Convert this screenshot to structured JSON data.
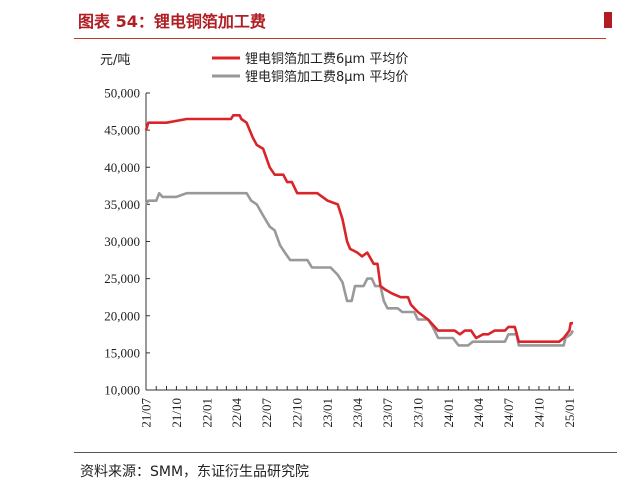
{
  "figure": {
    "title": "图表 54：锂电铜箔加工费",
    "source": "资料来源：SMM，东证衍生品研究院"
  },
  "chart_data": {
    "type": "line",
    "ylabel": "元/吨",
    "ylim": [
      10000,
      50000
    ],
    "yticks": [
      "10,000",
      "15,000",
      "20,000",
      "25,000",
      "30,000",
      "35,000",
      "40,000",
      "45,000",
      "50,000"
    ],
    "ytick_values": [
      10000,
      15000,
      20000,
      25000,
      30000,
      35000,
      40000,
      45000,
      50000
    ],
    "xlim": [
      "2021-07-01",
      "2025-01-15"
    ],
    "xticks": [
      "21/07",
      "21/10",
      "22/01",
      "22/04",
      "22/07",
      "22/10",
      "23/01",
      "23/04",
      "23/07",
      "23/10",
      "24/01",
      "24/04",
      "24/07",
      "24/10",
      "25/01"
    ],
    "xtick_dates": [
      "2021-07-01",
      "2021-10-01",
      "2022-01-01",
      "2022-04-01",
      "2022-07-01",
      "2022-10-01",
      "2023-01-01",
      "2023-04-01",
      "2023-07-01",
      "2023-10-01",
      "2024-01-01",
      "2024-04-01",
      "2024-07-01",
      "2024-10-01",
      "2025-01-01"
    ],
    "legend_position": "top",
    "series": [
      {
        "name": "锂电铜箔加工费6μm 平均价",
        "color": "#d9252a",
        "points": [
          [
            "2021-07-01",
            45000
          ],
          [
            "2021-07-08",
            46000
          ],
          [
            "2021-09-01",
            46000
          ],
          [
            "2021-11-01",
            46500
          ],
          [
            "2022-03-15",
            46500
          ],
          [
            "2022-03-22",
            47000
          ],
          [
            "2022-04-10",
            47000
          ],
          [
            "2022-04-15",
            46500
          ],
          [
            "2022-05-01",
            46000
          ],
          [
            "2022-05-20",
            44000
          ],
          [
            "2022-06-01",
            43000
          ],
          [
            "2022-06-20",
            42500
          ],
          [
            "2022-07-10",
            40000
          ],
          [
            "2022-07-25",
            39000
          ],
          [
            "2022-08-20",
            39000
          ],
          [
            "2022-09-01",
            38000
          ],
          [
            "2022-09-15",
            38000
          ],
          [
            "2022-10-01",
            36500
          ],
          [
            "2022-12-01",
            36500
          ],
          [
            "2023-01-01",
            35500
          ],
          [
            "2023-02-01",
            35000
          ],
          [
            "2023-02-15",
            33000
          ],
          [
            "2023-03-01",
            30000
          ],
          [
            "2023-03-10",
            29000
          ],
          [
            "2023-04-01",
            28500
          ],
          [
            "2023-04-15",
            28000
          ],
          [
            "2023-05-01",
            28500
          ],
          [
            "2023-05-20",
            27000
          ],
          [
            "2023-06-01",
            27000
          ],
          [
            "2023-06-10",
            24000
          ],
          [
            "2023-06-25",
            23500
          ],
          [
            "2023-07-15",
            23000
          ],
          [
            "2023-08-10",
            22500
          ],
          [
            "2023-09-01",
            22500
          ],
          [
            "2023-09-10",
            21500
          ],
          [
            "2023-10-01",
            20500
          ],
          [
            "2023-11-01",
            19500
          ],
          [
            "2023-12-01",
            18000
          ],
          [
            "2024-01-20",
            18000
          ],
          [
            "2024-02-05",
            17500
          ],
          [
            "2024-02-20",
            18000
          ],
          [
            "2024-03-10",
            18000
          ],
          [
            "2024-03-25",
            17000
          ],
          [
            "2024-04-15",
            17500
          ],
          [
            "2024-05-01",
            17500
          ],
          [
            "2024-05-20",
            18000
          ],
          [
            "2024-06-20",
            18000
          ],
          [
            "2024-07-01",
            18500
          ],
          [
            "2024-07-20",
            18500
          ],
          [
            "2024-08-01",
            16500
          ],
          [
            "2024-12-01",
            16500
          ],
          [
            "2024-12-15",
            17000
          ],
          [
            "2025-01-01",
            18000
          ],
          [
            "2025-01-05",
            19000
          ],
          [
            "2025-01-12",
            19000
          ]
        ]
      },
      {
        "name": "锂电铜箔加工费8μm 平均价",
        "color": "#999999",
        "points": [
          [
            "2021-07-01",
            35000
          ],
          [
            "2021-07-08",
            35500
          ],
          [
            "2021-08-01",
            35500
          ],
          [
            "2021-08-10",
            36500
          ],
          [
            "2021-08-20",
            36000
          ],
          [
            "2021-10-01",
            36000
          ],
          [
            "2021-11-01",
            36500
          ],
          [
            "2022-05-01",
            36500
          ],
          [
            "2022-05-15",
            35500
          ],
          [
            "2022-06-01",
            35000
          ],
          [
            "2022-06-20",
            33500
          ],
          [
            "2022-07-10",
            32000
          ],
          [
            "2022-07-25",
            31500
          ],
          [
            "2022-08-10",
            29500
          ],
          [
            "2022-08-25",
            28500
          ],
          [
            "2022-09-10",
            27500
          ],
          [
            "2022-11-01",
            27500
          ],
          [
            "2022-11-15",
            26500
          ],
          [
            "2023-01-10",
            26500
          ],
          [
            "2023-02-01",
            25500
          ],
          [
            "2023-02-15",
            24500
          ],
          [
            "2023-03-01",
            22000
          ],
          [
            "2023-03-15",
            22000
          ],
          [
            "2023-03-25",
            24000
          ],
          [
            "2023-04-20",
            24000
          ],
          [
            "2023-05-01",
            25000
          ],
          [
            "2023-05-15",
            25000
          ],
          [
            "2023-05-25",
            24000
          ],
          [
            "2023-06-10",
            24000
          ],
          [
            "2023-06-20",
            22000
          ],
          [
            "2023-07-01",
            21000
          ],
          [
            "2023-08-01",
            21000
          ],
          [
            "2023-08-15",
            20500
          ],
          [
            "2023-09-20",
            20500
          ],
          [
            "2023-10-01",
            19500
          ],
          [
            "2023-11-01",
            19500
          ],
          [
            "2023-11-15",
            18500
          ],
          [
            "2023-12-01",
            17000
          ],
          [
            "2024-01-15",
            17000
          ],
          [
            "2024-02-01",
            16000
          ],
          [
            "2024-03-01",
            16000
          ],
          [
            "2024-03-15",
            16500
          ],
          [
            "2024-06-20",
            16500
          ],
          [
            "2024-07-01",
            17500
          ],
          [
            "2024-07-25",
            17500
          ],
          [
            "2024-08-01",
            16000
          ],
          [
            "2024-11-01",
            16000
          ],
          [
            "2024-11-10",
            16000
          ],
          [
            "2024-12-15",
            16000
          ],
          [
            "2024-12-20",
            17000
          ],
          [
            "2025-01-05",
            17500
          ],
          [
            "2025-01-12",
            18000
          ]
        ]
      }
    ]
  }
}
